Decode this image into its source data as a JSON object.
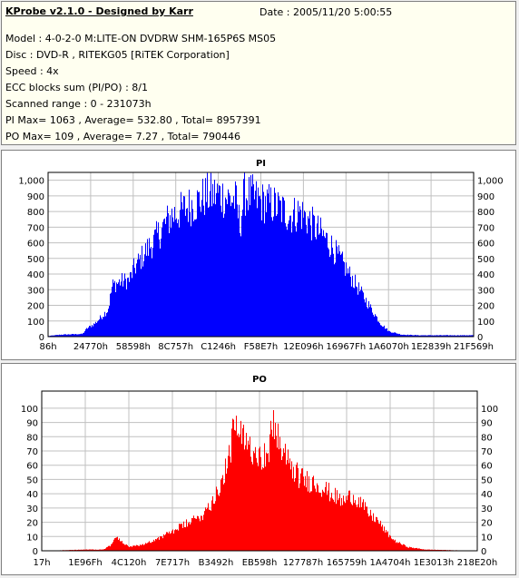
{
  "info": {
    "title": "KProbe v2.1.0 - Designed by Karr",
    "date": "Date : 2005/11/20 5:00:55",
    "lines": [
      "Model : 4-0-2-0 M:LITE-ON DVDRW SHM-165P6S MS05",
      "Disc : DVD-R , RITEKG05 [RiTEK Corporation]",
      "Speed : 4x",
      "ECC blocks sum (PI/PO) : 8/1",
      "Scanned range : 0 - 231073h",
      "PI Max= 1063 , Average= 532.80 , Total= 8957391",
      "PO Max= 109 , Average= 7.27 , Total= 790446"
    ]
  },
  "chart_data": [
    {
      "type": "area",
      "title": "PI",
      "color": "#0000ff",
      "x_tick_labels": [
        "86h",
        "24770h",
        "58598h",
        "8C757h",
        "C1246h",
        "F58E7h",
        "12E096h",
        "16967Fh",
        "1A6070h",
        "1E2839h",
        "21F569h"
      ],
      "y_ticks": [
        0,
        100,
        200,
        300,
        400,
        500,
        600,
        700,
        800,
        900,
        1000
      ],
      "y_tick_labels": [
        "0",
        "100",
        "200",
        "300",
        "400",
        "500",
        "600",
        "700",
        "800",
        "900",
        "1,000"
      ],
      "ylim": [
        0,
        1050
      ],
      "grid": true,
      "envelope": [
        [
          0,
          5
        ],
        [
          3,
          15
        ],
        [
          8,
          20
        ],
        [
          9,
          60
        ],
        [
          11,
          100
        ],
        [
          14,
          200
        ],
        [
          15,
          380
        ],
        [
          17,
          410
        ],
        [
          19,
          420
        ],
        [
          20,
          500
        ],
        [
          23,
          640
        ],
        [
          25,
          720
        ],
        [
          27,
          820
        ],
        [
          29,
          900
        ],
        [
          31,
          930
        ],
        [
          33,
          970
        ],
        [
          35,
          1000
        ],
        [
          37,
          1050
        ],
        [
          40,
          1060
        ],
        [
          42,
          1030
        ],
        [
          44,
          1010
        ],
        [
          45,
          830
        ],
        [
          46,
          1063
        ],
        [
          48,
          1040
        ],
        [
          50,
          1000
        ],
        [
          53,
          980
        ],
        [
          55,
          940
        ],
        [
          57,
          900
        ],
        [
          59,
          930
        ],
        [
          61,
          870
        ],
        [
          63,
          800
        ],
        [
          66,
          700
        ],
        [
          68,
          600
        ],
        [
          70,
          500
        ],
        [
          72,
          400
        ],
        [
          74,
          300
        ],
        [
          76,
          200
        ],
        [
          78,
          100
        ],
        [
          80,
          40
        ],
        [
          83,
          15
        ],
        [
          87,
          10
        ],
        [
          100,
          10
        ]
      ]
    },
    {
      "type": "area",
      "title": "PO",
      "color": "#ff0000",
      "x_tick_labels": [
        "17h",
        "1E96Fh",
        "4C120h",
        "7E717h",
        "B3492h",
        "EB598h",
        "127787h",
        "165759h",
        "1A4704h",
        "1E3013h",
        "218E20h"
      ],
      "y_ticks": [
        0,
        10,
        20,
        30,
        40,
        50,
        60,
        70,
        80,
        90,
        100
      ],
      "y_tick_labels": [
        "0",
        "10",
        "20",
        "30",
        "40",
        "50",
        "60",
        "70",
        "80",
        "90",
        "100"
      ],
      "ylim": [
        0,
        112
      ],
      "grid": true,
      "envelope": [
        [
          0,
          0
        ],
        [
          10,
          1
        ],
        [
          14,
          1
        ],
        [
          16,
          5
        ],
        [
          17,
          12
        ],
        [
          18,
          8
        ],
        [
          20,
          3
        ],
        [
          23,
          5
        ],
        [
          26,
          9
        ],
        [
          29,
          14
        ],
        [
          31,
          18
        ],
        [
          33,
          22
        ],
        [
          35,
          25
        ],
        [
          37,
          30
        ],
        [
          39,
          40
        ],
        [
          41,
          55
        ],
        [
          43,
          75
        ],
        [
          44,
          102
        ],
        [
          46,
          90
        ],
        [
          48,
          85
        ],
        [
          50,
          80
        ],
        [
          52,
          75
        ],
        [
          53,
          109
        ],
        [
          55,
          80
        ],
        [
          57,
          70
        ],
        [
          59,
          60
        ],
        [
          61,
          57
        ],
        [
          63,
          55
        ],
        [
          65,
          50
        ],
        [
          67,
          45
        ],
        [
          69,
          40
        ],
        [
          71,
          45
        ],
        [
          73,
          40
        ],
        [
          75,
          30
        ],
        [
          77,
          25
        ],
        [
          79,
          15
        ],
        [
          81,
          8
        ],
        [
          84,
          3
        ],
        [
          88,
          1
        ],
        [
          100,
          0
        ]
      ]
    }
  ]
}
